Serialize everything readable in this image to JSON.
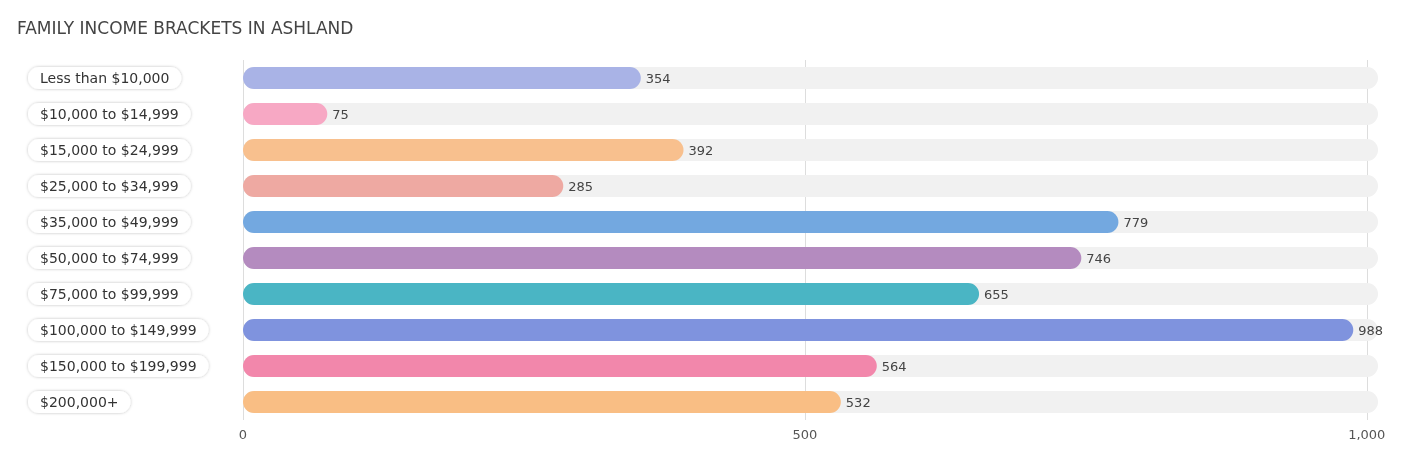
{
  "chart_data": {
    "type": "bar",
    "orientation": "horizontal",
    "title": "FAMILY INCOME BRACKETS IN ASHLAND",
    "categories": [
      "Less than $10,000",
      "$10,000 to $14,999",
      "$15,000 to $24,999",
      "$25,000 to $34,999",
      "$35,000 to $49,999",
      "$50,000 to $74,999",
      "$75,000 to $99,999",
      "$100,000 to $149,999",
      "$150,000 to $199,999",
      "$200,000+"
    ],
    "values": [
      354,
      75,
      392,
      285,
      779,
      746,
      655,
      988,
      564,
      532
    ],
    "colors": [
      "#a9b3e6",
      "#f7a8c4",
      "#f8c08e",
      "#eea9a2",
      "#73a8e0",
      "#b48bbf",
      "#4ab5c4",
      "#7f93de",
      "#f287ab",
      "#f9be84"
    ],
    "xlim": [
      0,
      1010
    ],
    "xticks": [
      0,
      500,
      {
        "value": 1000,
        "label": "1,000"
      }
    ],
    "grid": "x",
    "data_labels": true
  }
}
